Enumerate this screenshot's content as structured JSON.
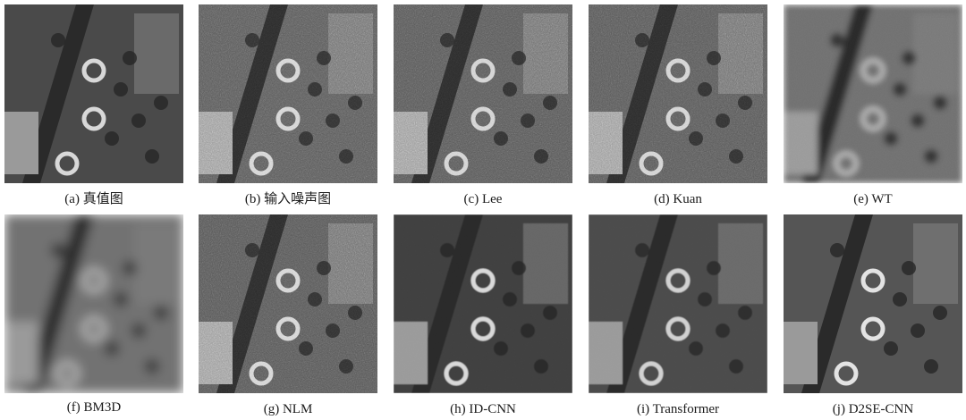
{
  "figure": {
    "panels": [
      {
        "caption": "(a) 真值图",
        "style": "clean",
        "palette": {
          "bg": "#4a4a4a",
          "accent": "#d8d8d8"
        }
      },
      {
        "caption": "(b) 输入噪声图",
        "style": "noisy",
        "palette": {
          "bg": "#5a5a5a",
          "accent": "#cfcfcf"
        }
      },
      {
        "caption": "(c) Lee",
        "style": "noisy",
        "palette": {
          "bg": "#585858",
          "accent": "#cccccc"
        }
      },
      {
        "caption": "(d) Kuan",
        "style": "noisy",
        "palette": {
          "bg": "#585858",
          "accent": "#cccccc"
        }
      },
      {
        "caption": "(e) WT",
        "style": "blurred",
        "palette": {
          "bg": "#6f6f6f",
          "accent": "#bdbdbd"
        }
      },
      {
        "caption": "(f) BM3D",
        "style": "very-blurred",
        "palette": {
          "bg": "#727272",
          "accent": "#c4c4c4"
        }
      },
      {
        "caption": "(g) NLM",
        "style": "noisy",
        "palette": {
          "bg": "#575757",
          "accent": "#cfcfcf"
        }
      },
      {
        "caption": "(h) ID-CNN",
        "style": "denoised",
        "palette": {
          "bg": "#3f3f3f",
          "accent": "#d9d9d9"
        }
      },
      {
        "caption": "(i) Transformer",
        "style": "denoised",
        "palette": {
          "bg": "#4b4b4b",
          "accent": "#d1d1d1"
        }
      },
      {
        "caption": "(j) D2SE-CNN",
        "style": "clean",
        "palette": {
          "bg": "#555555",
          "accent": "#e3e3e3"
        }
      }
    ]
  }
}
